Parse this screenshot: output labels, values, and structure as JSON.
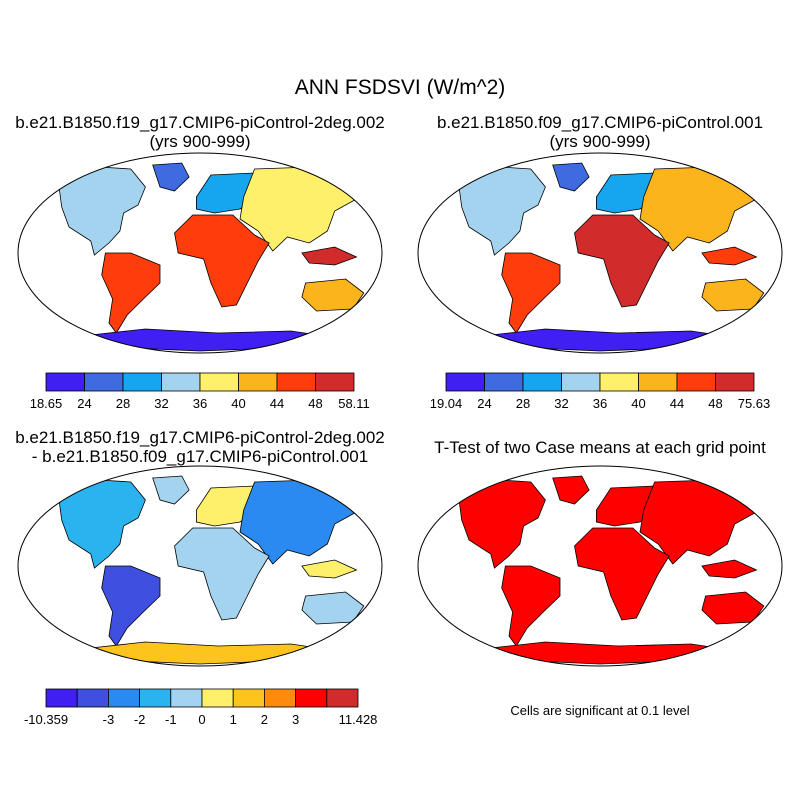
{
  "figure": {
    "title": "ANN FSDSVI (W/m^2)"
  },
  "panels": [
    {
      "id": "case1",
      "title_line1": "b.e21.B1850.f19_g17.CMIP6-piControl-2deg.002",
      "title_line2": "(yrs 900-999)",
      "colorbar": {
        "labels": [
          "18.65",
          "24",
          "28",
          "32",
          "36",
          "40",
          "44",
          "48",
          "58.11"
        ],
        "colors": [
          "#3f1ff2",
          "#3f6ae0",
          "#16a6f0",
          "#a3d3ef",
          "#fff06b",
          "#fcb41c",
          "#ff3c0c",
          "#d22b2b"
        ]
      }
    },
    {
      "id": "case2",
      "title_line1": "b.e21.B1850.f09_g17.CMIP6-piControl.001",
      "title_line2": "(yrs 900-999)",
      "colorbar": {
        "labels": [
          "19.04",
          "24",
          "28",
          "32",
          "36",
          "40",
          "44",
          "48",
          "75.63"
        ],
        "colors": [
          "#3f1ff2",
          "#3f6ae0",
          "#16a6f0",
          "#a3d3ef",
          "#fff06b",
          "#fcb41c",
          "#ff3c0c",
          "#d22b2b"
        ]
      }
    },
    {
      "id": "diff",
      "title_line1": "b.e21.B1850.f19_g17.CMIP6-piControl-2deg.002",
      "title_line2": "- b.e21.B1850.f09_g17.CMIP6-piControl.001",
      "colorbar": {
        "labels": [
          "-10.359",
          "-3",
          "-2",
          "-1",
          "0",
          "1",
          "2",
          "3",
          "11.428"
        ],
        "label_positions": [
          0,
          2,
          3,
          4,
          5,
          6,
          7,
          8,
          10
        ],
        "colors": [
          "#3f1ff2",
          "#3f50e0",
          "#2a8af0",
          "#2bb3f0",
          "#a3d3ef",
          "#fff06b",
          "#fcc41c",
          "#ff8a0c",
          "#ff0000",
          "#d22b2b"
        ]
      }
    },
    {
      "id": "ttest",
      "title_line1": "T-Test of two Case means at each grid point",
      "footnote": "Cells are significant at 0.1 level",
      "significant_color": "#ff0000"
    }
  ]
}
